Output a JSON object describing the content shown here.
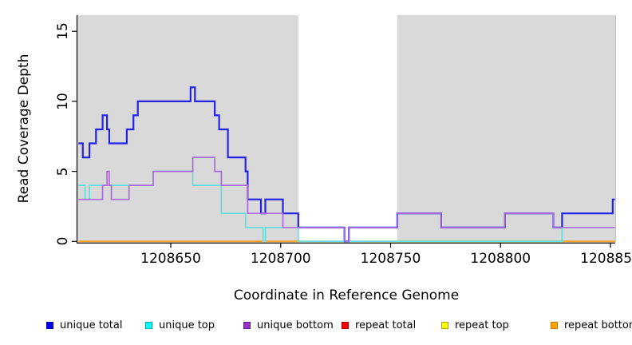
{
  "axes": {
    "x": {
      "label": "Coordinate in Reference Genome",
      "ticks": [
        {
          "value": 1208650,
          "label": "1208650"
        },
        {
          "value": 1208700,
          "label": "1208700"
        },
        {
          "value": 1208750,
          "label": "1208750"
        },
        {
          "value": 1208800,
          "label": "1208800"
        },
        {
          "value": 1208850,
          "label": "1208850"
        }
      ]
    },
    "y": {
      "label": "Read Coverage Depth",
      "ticks": [
        {
          "value": 0,
          "label": "0"
        },
        {
          "value": 5,
          "label": "5"
        },
        {
          "value": 10,
          "label": "10"
        },
        {
          "value": 15,
          "label": "15"
        }
      ]
    }
  },
  "legend": {
    "items": [
      {
        "label": "unique total",
        "color": "#0000EE",
        "border": "#0000AA"
      },
      {
        "label": "unique top",
        "color": "#00FFFF",
        "border": "#00AAAA"
      },
      {
        "label": "unique bottom",
        "color": "#9932CC",
        "border": "#6A1B9A"
      },
      {
        "label": "repeat total",
        "color": "#FF0000",
        "border": "#AA0000"
      },
      {
        "label": "repeat top",
        "color": "#FFFF00",
        "border": "#AAAA00"
      },
      {
        "label": "repeat bottom",
        "color": "#FFA500",
        "border": "#BB7700"
      }
    ]
  },
  "chart_data": {
    "type": "line",
    "style": "step",
    "xlabel": "Coordinate in Reference Genome",
    "ylabel": "Read Coverage Depth",
    "xlim": [
      1208608,
      1208852
    ],
    "ylim": [
      0,
      16
    ],
    "grid": false,
    "panel_background": "#D9D9D9",
    "highlight_band": {
      "x0": 1208708,
      "x1": 1208753,
      "color": "#FFFFFF"
    },
    "series": [
      {
        "name": "unique total",
        "color": "#2222E8",
        "width": 2.2,
        "steps": [
          [
            1208608,
            7
          ],
          [
            1208610,
            6
          ],
          [
            1208613,
            7
          ],
          [
            1208616,
            8
          ],
          [
            1208619,
            9
          ],
          [
            1208621,
            8
          ],
          [
            1208622,
            7
          ],
          [
            1208630,
            8
          ],
          [
            1208633,
            9
          ],
          [
            1208635,
            10
          ],
          [
            1208659,
            11
          ],
          [
            1208661,
            10
          ],
          [
            1208670,
            9
          ],
          [
            1208672,
            8
          ],
          [
            1208676,
            6
          ],
          [
            1208684,
            5
          ],
          [
            1208685,
            3
          ],
          [
            1208691,
            2
          ],
          [
            1208693,
            3
          ],
          [
            1208701,
            2
          ],
          [
            1208708,
            1
          ],
          [
            1208729,
            0
          ],
          [
            1208731,
            1
          ],
          [
            1208753,
            2
          ],
          [
            1208773,
            1
          ],
          [
            1208802,
            2
          ],
          [
            1208824,
            1
          ],
          [
            1208828,
            2
          ],
          [
            1208851,
            3
          ]
        ]
      },
      {
        "name": "unique top",
        "color": "#63DEDE",
        "width": 1.7,
        "steps": [
          [
            1208608,
            4
          ],
          [
            1208611,
            3
          ],
          [
            1208613,
            4
          ],
          [
            1208642,
            5
          ],
          [
            1208660,
            4
          ],
          [
            1208673,
            2
          ],
          [
            1208684,
            1
          ],
          [
            1208692,
            0
          ],
          [
            1208693,
            1
          ],
          [
            1208708,
            0
          ],
          [
            1208828,
            1
          ]
        ]
      },
      {
        "name": "unique bottom",
        "color": "#AC68DE",
        "width": 1.7,
        "steps": [
          [
            1208608,
            3
          ],
          [
            1208619,
            4
          ],
          [
            1208621,
            5
          ],
          [
            1208622,
            4
          ],
          [
            1208623,
            3
          ],
          [
            1208631,
            4
          ],
          [
            1208642,
            5
          ],
          [
            1208660,
            6
          ],
          [
            1208670,
            5
          ],
          [
            1208673,
            4
          ],
          [
            1208685,
            2
          ],
          [
            1208701,
            1
          ],
          [
            1208729,
            0
          ],
          [
            1208731,
            1
          ],
          [
            1208753,
            2
          ],
          [
            1208773,
            1
          ],
          [
            1208802,
            2
          ],
          [
            1208824,
            1
          ]
        ]
      },
      {
        "name": "repeat total",
        "color": "#FF0000",
        "width": 1.7,
        "steps": [
          [
            1208608,
            0
          ]
        ],
        "note": "flat at 0, hidden under other zero lines"
      },
      {
        "name": "repeat top",
        "color": "#FFFF00",
        "width": 1.7,
        "steps": [
          [
            1208608,
            0
          ]
        ],
        "note": "flat at 0; blends with cyan at 0 to look green in 1208708-1208828"
      },
      {
        "name": "repeat bottom",
        "color": "#FFA01E",
        "width": 2,
        "steps": [
          [
            1208608,
            0
          ]
        ],
        "note": "flat at 0; visible orange outside 1208708-1208828"
      }
    ],
    "zero_line_rendered_segments": [
      {
        "x0": 1208608,
        "x1": 1208708,
        "color": "#FFA01E"
      },
      {
        "x0": 1208708,
        "x1": 1208828,
        "color": "#7FCF7F"
      },
      {
        "x0": 1208828,
        "x1": 1208852,
        "color": "#FFA01E"
      }
    ]
  }
}
